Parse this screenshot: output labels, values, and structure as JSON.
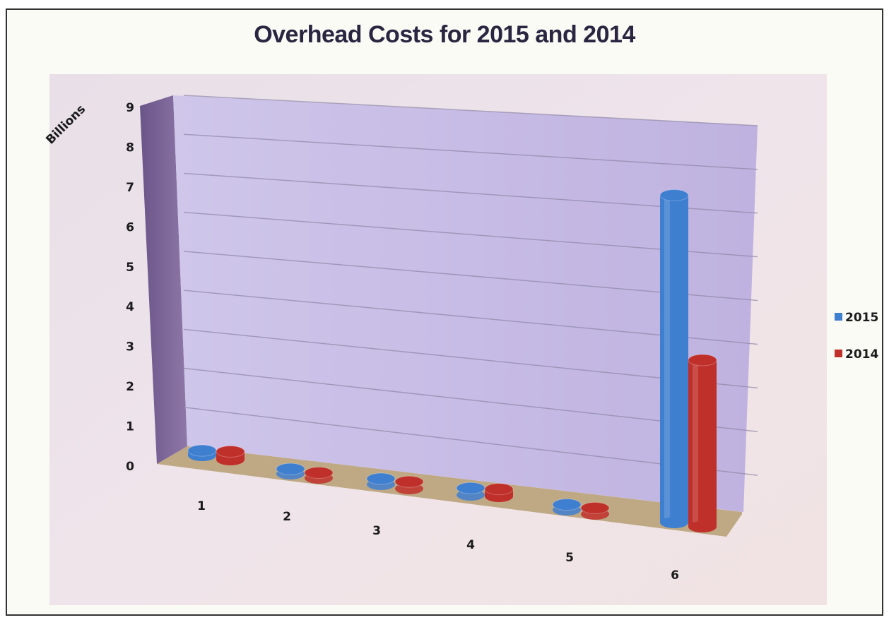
{
  "chart_data": {
    "type": "bar",
    "title": "Overhead Costs for 2015 and 2014",
    "ylabel": "Billions",
    "xlabel": "",
    "categories": [
      "1",
      "2",
      "3",
      "4",
      "5",
      "6"
    ],
    "series": [
      {
        "name": "2015",
        "color": "#3f7fd0",
        "values": [
          0.12,
          0.05,
          0.07,
          0.1,
          0.06,
          8.05
        ]
      },
      {
        "name": "2014",
        "color": "#c0302a",
        "values": [
          0.2,
          0.06,
          0.1,
          0.18,
          0.08,
          4.1
        ]
      }
    ],
    "ylim": [
      0,
      9
    ],
    "yticks": [
      "0",
      "1",
      "2",
      "3",
      "4",
      "5",
      "6",
      "7",
      "8",
      "9"
    ],
    "grid": true,
    "legend_position": "right"
  },
  "colors": {
    "back_wall": "#c8bde6",
    "side_wall": "#7b6496",
    "floor": "#b9a27a",
    "gridline": "#8f88a8"
  }
}
